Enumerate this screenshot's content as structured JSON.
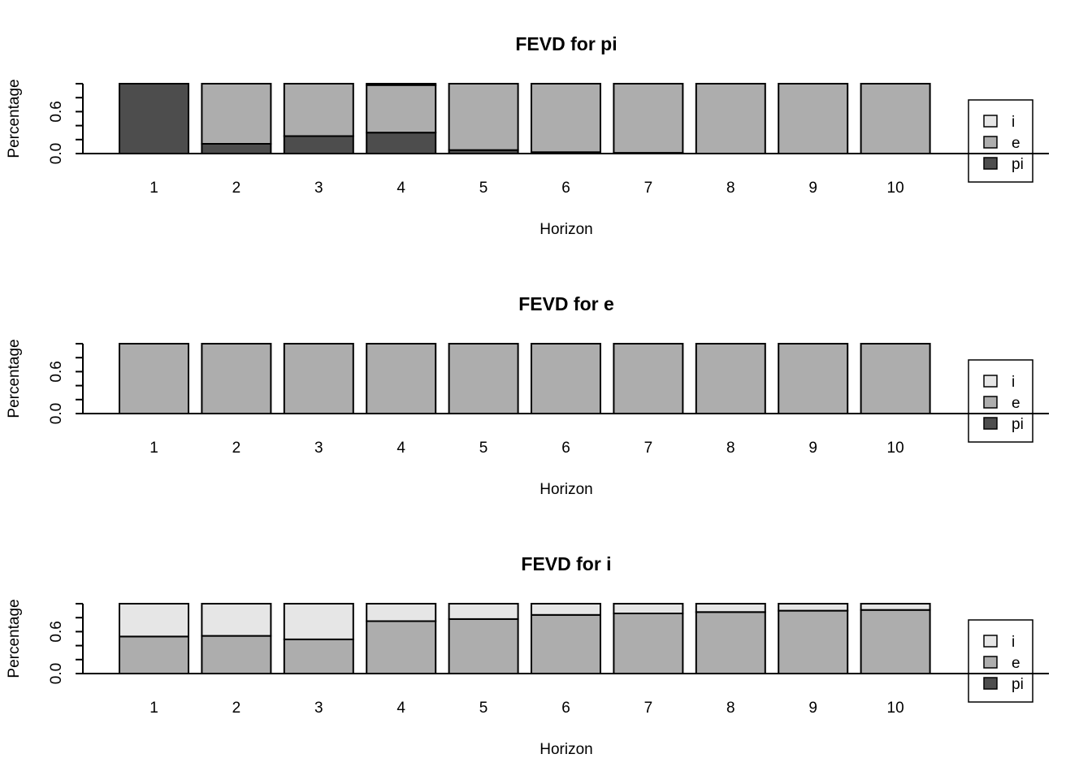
{
  "colors": {
    "i": "#e6e6e6",
    "e": "#adadad",
    "pi": "#4d4d4d",
    "stroke": "#000000",
    "background": "#ffffff"
  },
  "chart_data": [
    {
      "type": "bar",
      "stacked": true,
      "title": "FEVD for pi",
      "xlabel": "Horizon",
      "ylabel": "Percentage",
      "categories": [
        "1",
        "2",
        "3",
        "4",
        "5",
        "6",
        "7",
        "8",
        "9",
        "10"
      ],
      "yticks": [
        "0.0",
        "0.6"
      ],
      "ylim": [
        0,
        1
      ],
      "legend_position": "right",
      "legend": [
        "i",
        "e",
        "pi"
      ],
      "series": [
        {
          "name": "pi",
          "values": [
            1.0,
            0.14,
            0.25,
            0.3,
            0.05,
            0.02,
            0.01,
            0.0,
            0.0,
            0.0
          ]
        },
        {
          "name": "e",
          "values": [
            0.0,
            0.86,
            0.75,
            0.68,
            0.95,
            0.98,
            0.99,
            1.0,
            1.0,
            1.0
          ]
        },
        {
          "name": "i",
          "values": [
            0.0,
            0.0,
            0.0,
            0.02,
            0.0,
            0.0,
            0.0,
            0.0,
            0.0,
            0.0
          ]
        }
      ]
    },
    {
      "type": "bar",
      "stacked": true,
      "title": "FEVD for e",
      "xlabel": "Horizon",
      "ylabel": "Percentage",
      "categories": [
        "1",
        "2",
        "3",
        "4",
        "5",
        "6",
        "7",
        "8",
        "9",
        "10"
      ],
      "yticks": [
        "0.0",
        "0.6"
      ],
      "ylim": [
        0,
        1
      ],
      "legend_position": "right",
      "legend": [
        "i",
        "e",
        "pi"
      ],
      "series": [
        {
          "name": "pi",
          "values": [
            0,
            0,
            0,
            0,
            0,
            0,
            0,
            0,
            0,
            0
          ]
        },
        {
          "name": "e",
          "values": [
            1,
            1,
            1,
            1,
            1,
            1,
            1,
            1,
            1,
            1
          ]
        },
        {
          "name": "i",
          "values": [
            0,
            0,
            0,
            0,
            0,
            0,
            0,
            0,
            0,
            0
          ]
        }
      ]
    },
    {
      "type": "bar",
      "stacked": true,
      "title": "FEVD for i",
      "xlabel": "Horizon",
      "ylabel": "Percentage",
      "categories": [
        "1",
        "2",
        "3",
        "4",
        "5",
        "6",
        "7",
        "8",
        "9",
        "10"
      ],
      "yticks": [
        "0.0",
        "0.6"
      ],
      "ylim": [
        0,
        1
      ],
      "legend_position": "right",
      "legend": [
        "i",
        "e",
        "pi"
      ],
      "series": [
        {
          "name": "pi",
          "values": [
            0,
            0,
            0,
            0,
            0,
            0,
            0,
            0,
            0,
            0
          ]
        },
        {
          "name": "e",
          "values": [
            0.53,
            0.54,
            0.49,
            0.75,
            0.78,
            0.84,
            0.86,
            0.88,
            0.9,
            0.91
          ]
        },
        {
          "name": "i",
          "values": [
            0.47,
            0.46,
            0.51,
            0.25,
            0.22,
            0.16,
            0.14,
            0.12,
            0.1,
            0.09
          ]
        }
      ]
    }
  ]
}
